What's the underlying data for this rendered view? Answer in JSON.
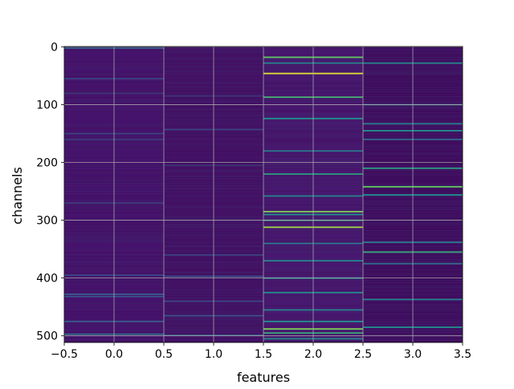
{
  "chart_data": {
    "type": "heatmap",
    "title": "",
    "xlabel": "features",
    "ylabel": "channels",
    "xlim": [
      -0.5,
      3.5
    ],
    "ylim": [
      511.5,
      -0.5
    ],
    "x_ticks": [
      "−0.5",
      "0.0",
      "0.5",
      "1.0",
      "1.5",
      "2.0",
      "2.5",
      "3.0",
      "3.5"
    ],
    "x_tick_values": [
      -0.5,
      0.0,
      0.5,
      1.0,
      1.5,
      2.0,
      2.5,
      3.0,
      3.5
    ],
    "y_ticks": [
      "0",
      "100",
      "200",
      "300",
      "400",
      "500"
    ],
    "y_tick_values": [
      0,
      100,
      200,
      300,
      400,
      500
    ],
    "grid": true,
    "n_rows": 512,
    "n_cols": 4,
    "colormap": "viridis",
    "base_colors": [
      "#46126d",
      "#431166",
      "#481870",
      "#3f0d5f"
    ],
    "highlights": [
      [
        {
          "row": 2,
          "value": 0.3
        },
        {
          "row": 55,
          "value": 0.2
        },
        {
          "row": 80,
          "value": 0.15
        },
        {
          "row": 150,
          "value": 0.2
        },
        {
          "row": 160,
          "value": 0.18
        },
        {
          "row": 270,
          "value": 0.18
        },
        {
          "row": 395,
          "value": 0.22
        },
        {
          "row": 428,
          "value": 0.3
        },
        {
          "row": 432,
          "value": 0.25
        },
        {
          "row": 475,
          "value": 0.3
        },
        {
          "row": 497,
          "value": 0.35
        }
      ],
      [
        {
          "row": 85,
          "value": 0.15
        },
        {
          "row": 143,
          "value": 0.2
        },
        {
          "row": 205,
          "value": 0.15
        },
        {
          "row": 360,
          "value": 0.2
        },
        {
          "row": 397,
          "value": 0.25
        },
        {
          "row": 440,
          "value": 0.22
        },
        {
          "row": 465,
          "value": 0.25
        },
        {
          "row": 499,
          "value": 0.3
        }
      ],
      [
        {
          "row": 18,
          "value": 0.75
        },
        {
          "row": 28,
          "value": 0.45
        },
        {
          "row": 46,
          "value": 0.95
        },
        {
          "row": 87,
          "value": 0.65
        },
        {
          "row": 124,
          "value": 0.5
        },
        {
          "row": 180,
          "value": 0.4
        },
        {
          "row": 220,
          "value": 0.55
        },
        {
          "row": 258,
          "value": 0.45
        },
        {
          "row": 285,
          "value": 0.8
        },
        {
          "row": 290,
          "value": 0.5
        },
        {
          "row": 300,
          "value": 0.55
        },
        {
          "row": 312,
          "value": 0.85
        },
        {
          "row": 340,
          "value": 0.4
        },
        {
          "row": 370,
          "value": 0.45
        },
        {
          "row": 400,
          "value": 0.5
        },
        {
          "row": 425,
          "value": 0.5
        },
        {
          "row": 455,
          "value": 0.45
        },
        {
          "row": 475,
          "value": 0.5
        },
        {
          "row": 488,
          "value": 0.8
        },
        {
          "row": 495,
          "value": 0.6
        },
        {
          "row": 505,
          "value": 0.45
        }
      ],
      [
        {
          "row": 28,
          "value": 0.45
        },
        {
          "row": 100,
          "value": 0.35
        },
        {
          "row": 133,
          "value": 0.4
        },
        {
          "row": 145,
          "value": 0.5
        },
        {
          "row": 160,
          "value": 0.35
        },
        {
          "row": 210,
          "value": 0.55
        },
        {
          "row": 242,
          "value": 0.75
        },
        {
          "row": 256,
          "value": 0.5
        },
        {
          "row": 338,
          "value": 0.4
        },
        {
          "row": 355,
          "value": 0.6
        },
        {
          "row": 375,
          "value": 0.35
        },
        {
          "row": 437,
          "value": 0.45
        },
        {
          "row": 485,
          "value": 0.5
        }
      ]
    ]
  }
}
